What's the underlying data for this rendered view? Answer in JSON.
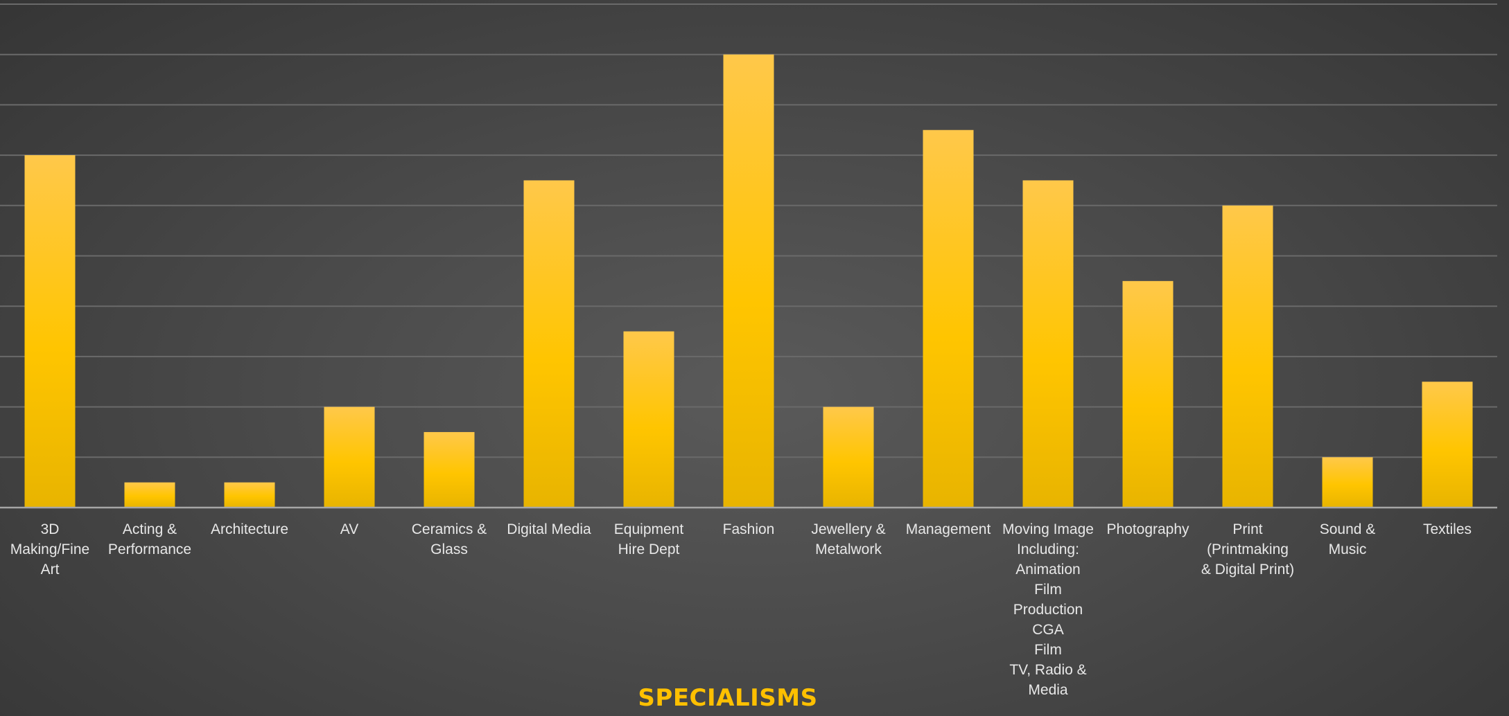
{
  "chart_data": {
    "type": "bar",
    "xlabel": "SPECIALISMS",
    "ylabel": "",
    "ylim": [
      0,
      20
    ],
    "grid": true,
    "categories": [
      "3D\nMaking/Fine\nArt",
      "Acting &\nPerformance",
      "Architecture",
      "AV",
      "Ceramics &\nGlass",
      "Digital Media",
      "Equipment\nHire Dept",
      "Fashion",
      "Jewellery &\nMetalwork",
      "Management",
      "Moving Image\nIncluding:\nAnimation\nFilm\nProduction\nCGA\nFilm\nTV, Radio &\nMedia",
      "Photography",
      "Print\n(Printmaking\n& Digital Print)",
      "Sound &\nMusic",
      "Textiles"
    ],
    "values": [
      14,
      1,
      1,
      4,
      3,
      13,
      7,
      18,
      4,
      15,
      13,
      9,
      12,
      2,
      5
    ],
    "colors": {
      "bar_top": "#ffc84a",
      "bar_mid": "#ffc500",
      "bar_bottom": "#e8b400",
      "gridline": "#6a6a6a",
      "axis": "#a6a6a6",
      "xlabel": "#ffc000",
      "tick_label": "#e8e8e8"
    }
  }
}
